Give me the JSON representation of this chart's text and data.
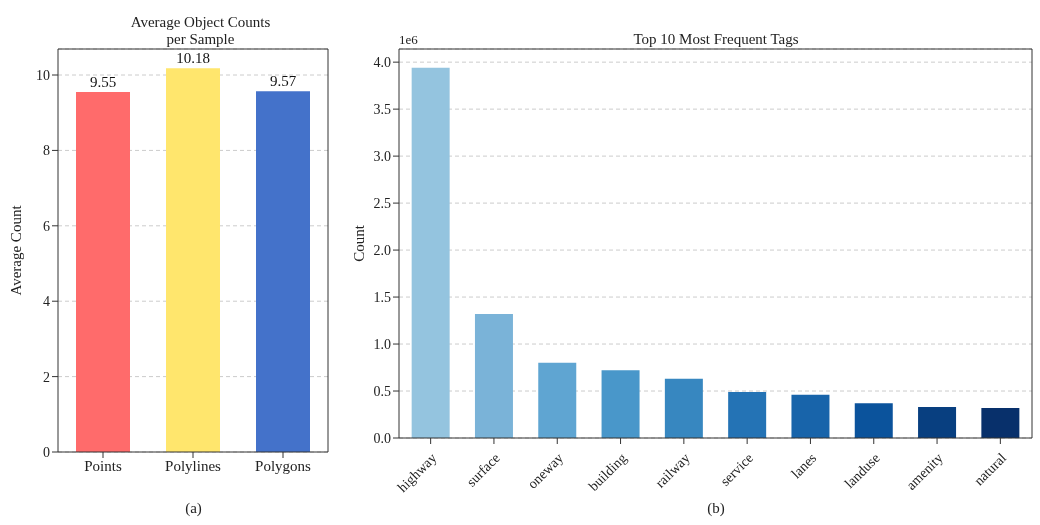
{
  "chart_data": [
    {
      "type": "bar",
      "title": "Average Object Counts\nper Sample",
      "xlabel": "(a)",
      "ylabel": "Average Count",
      "categories": [
        "Points",
        "Polylines",
        "Polygons"
      ],
      "values": [
        9.55,
        10.18,
        9.57
      ],
      "colors": [
        "#ff6b6b",
        "#ffe66d",
        "#4472ca"
      ],
      "ylim": [
        0,
        10.69
      ],
      "yticks": [
        0,
        2,
        4,
        6,
        8,
        10
      ],
      "grid": "y",
      "data_labels": true
    },
    {
      "type": "bar",
      "title": "Top 10 Most Frequent Tags",
      "xlabel": "(b)",
      "ylabel": "Count",
      "annotations": [
        "1e6"
      ],
      "categories": [
        "highway",
        "surface",
        "oneway",
        "building",
        "railway",
        "service",
        "lanes",
        "landuse",
        "amenity",
        "natural"
      ],
      "values": [
        3.94,
        1.32,
        0.8,
        0.72,
        0.63,
        0.49,
        0.46,
        0.37,
        0.33,
        0.32
      ],
      "colors": [
        "#94c4df",
        "#7ab3d8",
        "#5fa5d2",
        "#4997ca",
        "#3787c0",
        "#2473b5",
        "#1864aa",
        "#0b539c",
        "#083f80",
        "#08306b"
      ],
      "ylim": [
        0,
        4.14
      ],
      "yticks": [
        {
          "value": 0,
          "label": "0.0"
        },
        {
          "value": 0.5,
          "label": "0.5"
        },
        {
          "value": 1,
          "label": "1.0"
        },
        {
          "value": 1.5,
          "label": "1.5"
        },
        {
          "value": 2,
          "label": "2.0"
        },
        {
          "value": 2.5,
          "label": "2.5"
        },
        {
          "value": 3,
          "label": "3.0"
        },
        {
          "value": 3.5,
          "label": "3.5"
        },
        {
          "value": 4,
          "label": "4.0"
        }
      ],
      "grid": "y"
    }
  ]
}
